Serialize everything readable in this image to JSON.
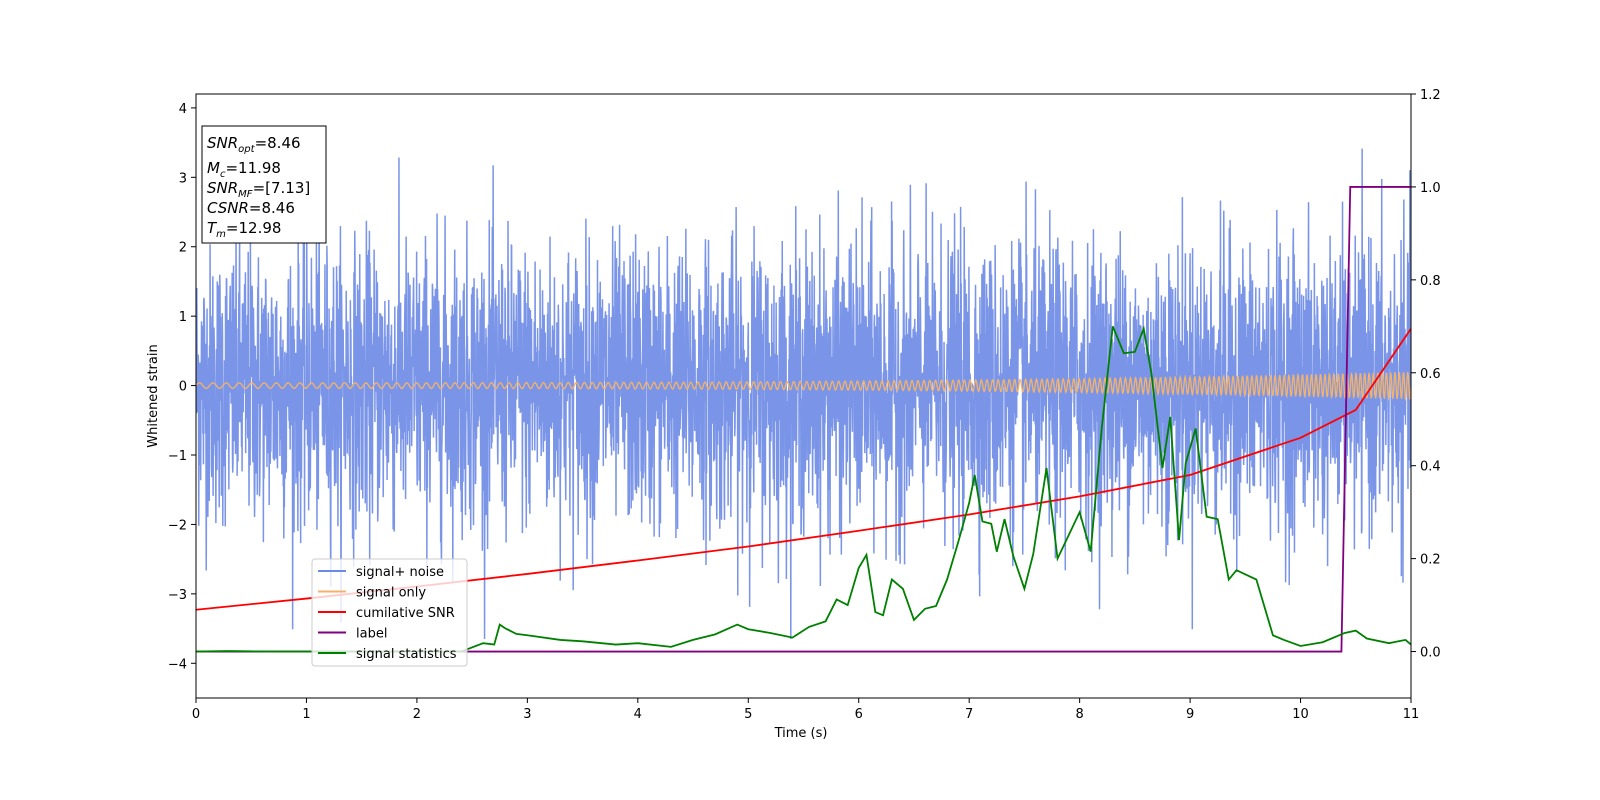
{
  "chart_data": {
    "type": "line",
    "title": "",
    "xlabel": "Time (s)",
    "ylabel": "Whitened strain",
    "xlim": [
      0,
      11
    ],
    "ylim": [
      -4.5,
      4.2
    ],
    "y2lim": [
      -0.1,
      1.2
    ],
    "grid": false,
    "legend_position": "lower-left",
    "x_ticks": [
      "0",
      "1",
      "2",
      "3",
      "4",
      "5",
      "6",
      "7",
      "8",
      "9",
      "10",
      "11"
    ],
    "y_ticks": [
      "4",
      "3",
      "2",
      "1",
      "0",
      "−1",
      "−2",
      "−3",
      "−4"
    ],
    "y2_ticks": [
      "1.2",
      "1.0",
      "0.8",
      "0.6",
      "0.4",
      "0.2",
      "0.0"
    ],
    "info_box": {
      "snr_opt": {
        "name": "SNR",
        "sub": "opt",
        "value": "=8.46"
      },
      "mc": {
        "name": "M",
        "sub": "c",
        "value": "=11.98"
      },
      "snr_mf": {
        "name": "SNR",
        "sub": "MF",
        "value": "=[7.13]"
      },
      "csnr": {
        "name": "CSNR",
        "value": "=8.46"
      },
      "tm": {
        "name": "T",
        "sub": "m",
        "value": "=12.98"
      }
    },
    "series": [
      {
        "name": "signal+ noise",
        "axis": "left",
        "color": "#6b8ae6",
        "description_values": "whitened noise, approx. std 1.0, peaks up to ~3.8 and down to ~-3.6",
        "amplitude_std": 1.0
      },
      {
        "name": "signal only",
        "axis": "left",
        "color": "#f4b26a",
        "chirp": {
          "amplitude_start": 0.04,
          "amplitude_end": 0.2,
          "freq_start_hz": 8,
          "freq_end_hz": 17
        }
      },
      {
        "name": "cumilative SNR",
        "axis": "right",
        "color": "#ff0000",
        "x": [
          0,
          1,
          2,
          3,
          4,
          5,
          6,
          7,
          8,
          9,
          10,
          10.5,
          11
        ],
        "values": [
          0.09,
          0.114,
          0.14,
          0.167,
          0.196,
          0.226,
          0.26,
          0.295,
          0.334,
          0.38,
          0.46,
          0.52,
          0.695
        ]
      },
      {
        "name": "label",
        "axis": "right",
        "color": "#800080",
        "x": [
          0,
          10.37,
          10.45,
          11
        ],
        "values": [
          0,
          0,
          1,
          1
        ]
      },
      {
        "name": "signal statistics",
        "axis": "right",
        "color": "#008000",
        "x": [
          0,
          0.3,
          0.6,
          1,
          1.5,
          2,
          2.4,
          2.6,
          2.7,
          2.75,
          2.8,
          2.9,
          3.0,
          3.3,
          3.5,
          3.8,
          4.0,
          4.3,
          4.5,
          4.7,
          4.9,
          5.0,
          5.2,
          5.4,
          5.55,
          5.7,
          5.8,
          5.9,
          6.0,
          6.07,
          6.15,
          6.22,
          6.3,
          6.4,
          6.5,
          6.6,
          6.7,
          6.8,
          6.9,
          7.0,
          7.05,
          7.12,
          7.2,
          7.25,
          7.32,
          7.4,
          7.5,
          7.58,
          7.7,
          7.8,
          7.9,
          8.0,
          8.1,
          8.2,
          8.3,
          8.4,
          8.5,
          8.58,
          8.65,
          8.75,
          8.82,
          8.9,
          8.96,
          9.05,
          9.15,
          9.25,
          9.35,
          9.42,
          9.6,
          9.75,
          9.85,
          10.0,
          10.2,
          10.4,
          10.5,
          10.6,
          10.8,
          10.95,
          11
        ],
        "values": [
          0,
          0.001,
          0,
          0,
          0,
          0,
          0,
          0.018,
          0.015,
          0.058,
          0.05,
          0.038,
          0.035,
          0.025,
          0.022,
          0.015,
          0.018,
          0.01,
          0.025,
          0.037,
          0.058,
          0.048,
          0.04,
          0.03,
          0.053,
          0.065,
          0.112,
          0.1,
          0.18,
          0.208,
          0.085,
          0.078,
          0.155,
          0.135,
          0.068,
          0.092,
          0.098,
          0.155,
          0.235,
          0.32,
          0.38,
          0.28,
          0.275,
          0.215,
          0.285,
          0.205,
          0.135,
          0.21,
          0.395,
          0.2,
          0.25,
          0.3,
          0.215,
          0.48,
          0.7,
          0.642,
          0.645,
          0.695,
          0.598,
          0.395,
          0.505,
          0.24,
          0.405,
          0.48,
          0.29,
          0.285,
          0.155,
          0.175,
          0.155,
          0.035,
          0.025,
          0.012,
          0.02,
          0.04,
          0.045,
          0.028,
          0.018,
          0.025,
          0.015
        ]
      }
    ]
  }
}
